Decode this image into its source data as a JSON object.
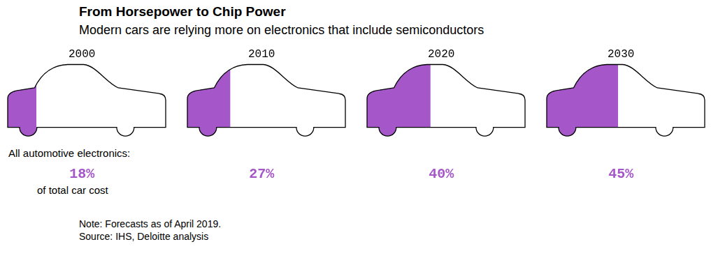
{
  "chart_data": {
    "type": "bar",
    "title": "From Horsepower to Chip Power",
    "subtitle": "Modern cars are relying more on electronics that include semiconductors",
    "categories": [
      "2000",
      "2010",
      "2020",
      "2030"
    ],
    "values": [
      18,
      27,
      40,
      45
    ],
    "value_labels": [
      "18%",
      "27%",
      "40%",
      "45%"
    ],
    "color": "#a556c9",
    "orientation": "horizontal",
    "xlim": [
      0,
      100
    ],
    "tick_labels": false,
    "grid": false,
    "data_labels": true,
    "annotations": [
      "All automotive electronics:",
      "of total car cost",
      "Note: Forecasts as of April 2019.",
      "Source: IHS, Deloitte analysis"
    ]
  }
}
